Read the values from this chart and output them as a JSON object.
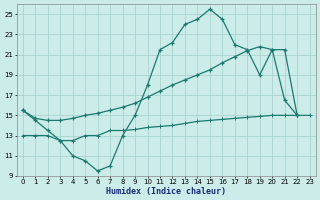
{
  "xlabel": "Humidex (Indice chaleur)",
  "bg_color": "#ccecea",
  "grid_color": "#aad4d0",
  "line_color": "#1a7a6e",
  "xlim": [
    -0.5,
    23.5
  ],
  "ylim": [
    9,
    26
  ],
  "yticks": [
    9,
    11,
    13,
    15,
    17,
    19,
    21,
    23,
    25
  ],
  "xticks": [
    0,
    1,
    2,
    3,
    4,
    5,
    6,
    7,
    8,
    9,
    10,
    11,
    12,
    13,
    14,
    15,
    16,
    17,
    18,
    19,
    20,
    21,
    22,
    23
  ],
  "line1_x": [
    0,
    1,
    2,
    3,
    4,
    5,
    6,
    7,
    8,
    9,
    10,
    11,
    12,
    13,
    14,
    15,
    16,
    17,
    18,
    19,
    20,
    21,
    22
  ],
  "line1_y": [
    15.5,
    14.5,
    13.5,
    12.5,
    11.0,
    10.5,
    9.5,
    10.0,
    13.0,
    15.0,
    18.0,
    21.5,
    22.2,
    24.0,
    24.5,
    25.5,
    24.5,
    22.0,
    21.5,
    19.0,
    21.5,
    16.5,
    15.0
  ],
  "line2_x": [
    0,
    1,
    2,
    3,
    4,
    5,
    6,
    7,
    8,
    9,
    10,
    11,
    12,
    13,
    14,
    15,
    16,
    17,
    18,
    19,
    20,
    21,
    22
  ],
  "line2_y": [
    15.5,
    14.7,
    14.5,
    14.5,
    14.7,
    15.0,
    15.2,
    15.5,
    15.8,
    16.2,
    16.8,
    17.4,
    18.0,
    18.5,
    19.0,
    19.5,
    20.2,
    20.8,
    21.4,
    21.8,
    21.5,
    21.5,
    15.0
  ],
  "line3_x": [
    0,
    1,
    2,
    3,
    4,
    5,
    6,
    7,
    8,
    9,
    10,
    11,
    12,
    13,
    14,
    15,
    16,
    17,
    18,
    19,
    20,
    21,
    22,
    23
  ],
  "line3_y": [
    13.0,
    13.0,
    13.0,
    12.5,
    12.5,
    13.0,
    13.0,
    13.5,
    13.5,
    13.6,
    13.8,
    13.9,
    14.0,
    14.2,
    14.4,
    14.5,
    14.6,
    14.7,
    14.8,
    14.9,
    15.0,
    15.0,
    15.0,
    15.0
  ]
}
